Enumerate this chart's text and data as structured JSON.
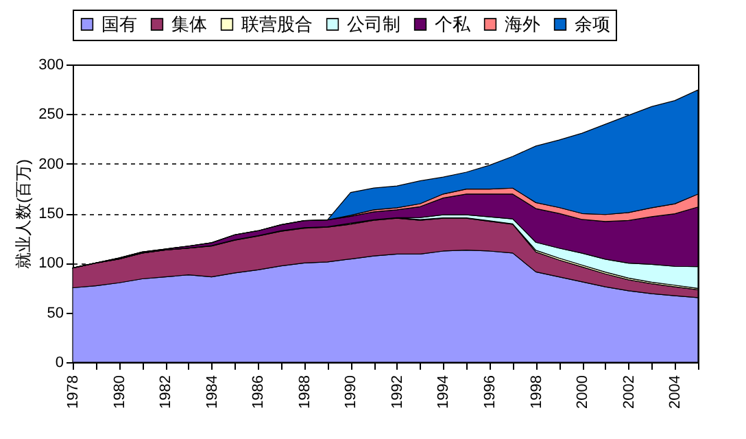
{
  "chart_data": {
    "type": "area",
    "stacked": true,
    "ylabel": "就业人数(百万)",
    "x": [
      1978,
      1979,
      1980,
      1981,
      1982,
      1983,
      1984,
      1985,
      1986,
      1987,
      1988,
      1989,
      1990,
      1991,
      1992,
      1993,
      1994,
      1995,
      1996,
      1997,
      1998,
      1999,
      2000,
      2001,
      2002,
      2003,
      2004,
      2005
    ],
    "series": [
      {
        "name": "国有",
        "color": "#9999ff",
        "values": [
          75,
          77,
          80,
          84,
          86,
          88,
          86,
          90,
          93,
          97,
          100,
          101,
          104,
          107,
          109,
          109,
          112,
          113,
          112,
          110,
          91,
          86,
          81,
          76,
          72,
          69,
          67,
          65
        ]
      },
      {
        "name": "集体",
        "color": "#993366",
        "values": [
          20,
          23,
          24,
          26,
          27,
          27,
          31,
          33,
          34,
          35,
          35,
          35,
          35,
          36,
          36,
          34,
          33,
          32,
          30,
          29,
          20,
          17,
          15,
          13,
          11,
          10,
          9,
          8
        ]
      },
      {
        "name": "联营股合",
        "color": "#ffffcc",
        "values": [
          0,
          0,
          0,
          0,
          0,
          0,
          0.4,
          0.4,
          0.4,
          0.5,
          0.6,
          0.4,
          1.0,
          0.5,
          0.6,
          0.7,
          0.5,
          0.5,
          0.5,
          0.4,
          1.8,
          1.9,
          1.8,
          1.8,
          1.8,
          1.6,
          1.6,
          1.4
        ]
      },
      {
        "name": "公司制",
        "color": "#ccffff",
        "values": [
          0,
          0,
          0,
          0,
          0,
          0,
          0,
          0,
          0,
          0,
          0,
          0,
          0,
          0,
          0,
          2,
          3,
          3,
          4,
          5,
          8,
          10,
          12,
          13,
          15,
          18,
          19,
          22
        ]
      },
      {
        "name": "个私",
        "color": "#660066",
        "values": [
          0,
          0,
          1,
          1,
          1,
          2,
          3,
          5,
          5,
          6,
          7,
          7,
          7,
          8,
          8,
          11,
          17,
          21,
          23,
          25,
          34,
          35,
          34,
          38,
          43,
          48,
          53,
          60
        ]
      },
      {
        "name": "海外",
        "color": "#ff8080",
        "values": [
          0,
          0,
          0,
          0,
          0,
          0,
          0,
          0,
          0,
          0,
          0,
          0,
          1,
          2,
          2,
          3,
          4,
          5,
          5,
          6,
          6,
          6,
          6,
          7,
          8,
          9,
          10,
          13
        ]
      },
      {
        "name": "余项",
        "color": "#0066cc",
        "values": [
          0,
          0,
          0,
          0,
          0,
          0,
          0,
          0,
          0,
          0,
          0,
          0,
          23,
          22,
          22,
          23,
          17,
          17,
          24,
          32,
          57,
          68,
          81,
          91,
          98,
          102,
          104,
          105
        ]
      }
    ],
    "xlim": [
      1978,
      2005
    ],
    "xticks": [
      1978,
      {
        "value": 1979,
        "label": null
      },
      1980,
      {
        "value": 1981,
        "label": null
      },
      1982,
      {
        "value": 1983,
        "label": null
      },
      1984,
      {
        "value": 1985,
        "label": null
      },
      1986,
      {
        "value": 1987,
        "label": null
      },
      1988,
      {
        "value": 1989,
        "label": null
      },
      1990,
      {
        "value": 1991,
        "label": null
      },
      1992,
      {
        "value": 1993,
        "label": null
      },
      1994,
      {
        "value": 1995,
        "label": null
      },
      1996,
      {
        "value": 1997,
        "label": null
      },
      1998,
      {
        "value": 1999,
        "label": null
      },
      2000,
      {
        "value": 2001,
        "label": null
      },
      2002,
      {
        "value": 2003,
        "label": null
      },
      2004,
      {
        "value": 2005,
        "label": null
      }
    ],
    "ylim": [
      0,
      300
    ],
    "yticks": [
      0,
      50,
      100,
      150,
      200,
      250,
      300
    ],
    "grid": "y",
    "legend": "top"
  }
}
